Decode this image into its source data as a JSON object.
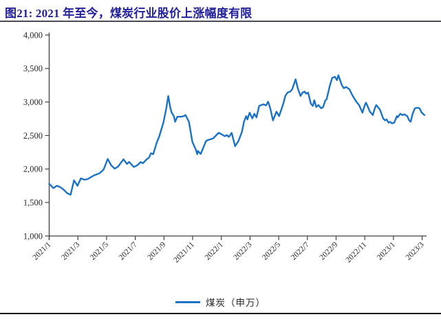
{
  "figure": {
    "title": "图21: 2021 年至今，煤炭行业股价上涨幅度有限",
    "title_color": "#22219a"
  },
  "legend": {
    "label": "煤炭（申万）",
    "line_color": "#1b72c4"
  },
  "chart_data": {
    "type": "line",
    "title": "图21: 2021 年至今，煤炭行业股价上涨幅度有限",
    "xlabel": "",
    "ylabel": "",
    "grid": false,
    "legend_position": "bottom",
    "ylim": [
      1000,
      4000
    ],
    "y_ticks": [
      4000,
      3500,
      3000,
      2500,
      2000,
      1500,
      1000
    ],
    "y_tick_labels": [
      "4,000",
      "3,500",
      "3,000",
      "2,500",
      "2,000",
      "1,500",
      "1,000"
    ],
    "x_ticks": [
      "2021/1",
      "2021/3",
      "2021/5",
      "2021/7",
      "2021/9",
      "2021/11",
      "2022/1",
      "2022/3",
      "2022/5",
      "2022/7",
      "2022/9",
      "2022/11",
      "2023/1",
      "2023/3"
    ],
    "x_tick_month_offsets": [
      0,
      2,
      4,
      6,
      8,
      10,
      12,
      14,
      16,
      18,
      20,
      22,
      24,
      26
    ],
    "x_unit": "months since 2021/1, weekly closes",
    "axis_color": "#3f3f3f",
    "tick_text_color": "#262626",
    "series": [
      {
        "name": "煤炭（申万）",
        "color": "#1b72c4",
        "points": [
          [
            0.0,
            1780
          ],
          [
            0.29,
            1715
          ],
          [
            0.53,
            1750
          ],
          [
            0.77,
            1730
          ],
          [
            1.01,
            1690
          ],
          [
            1.25,
            1640
          ],
          [
            1.49,
            1615
          ],
          [
            1.73,
            1830
          ],
          [
            1.97,
            1750
          ],
          [
            2.21,
            1860
          ],
          [
            2.45,
            1840
          ],
          [
            2.69,
            1850
          ],
          [
            3.12,
            1905
          ],
          [
            3.5,
            1935
          ],
          [
            3.79,
            1990
          ],
          [
            4.08,
            2150
          ],
          [
            4.32,
            2055
          ],
          [
            4.56,
            2005
          ],
          [
            4.8,
            2035
          ],
          [
            5.18,
            2145
          ],
          [
            5.42,
            2075
          ],
          [
            5.57,
            2105
          ],
          [
            5.9,
            2030
          ],
          [
            6.14,
            2055
          ],
          [
            6.38,
            2105
          ],
          [
            6.53,
            2085
          ],
          [
            6.77,
            2140
          ],
          [
            6.96,
            2170
          ],
          [
            7.1,
            2235
          ],
          [
            7.25,
            2220
          ],
          [
            7.49,
            2390
          ],
          [
            7.68,
            2490
          ],
          [
            7.97,
            2700
          ],
          [
            8.16,
            2900
          ],
          [
            8.3,
            3090
          ],
          [
            8.45,
            2905
          ],
          [
            8.54,
            2840
          ],
          [
            8.69,
            2790
          ],
          [
            8.78,
            2705
          ],
          [
            8.93,
            2780
          ],
          [
            9.17,
            2780
          ],
          [
            9.41,
            2790
          ],
          [
            9.5,
            2805
          ],
          [
            9.74,
            2705
          ],
          [
            9.98,
            2405
          ],
          [
            10.22,
            2290
          ],
          [
            10.32,
            2220
          ],
          [
            10.37,
            2270
          ],
          [
            10.56,
            2225
          ],
          [
            10.94,
            2420
          ],
          [
            11.18,
            2440
          ],
          [
            11.42,
            2455
          ],
          [
            11.81,
            2540
          ],
          [
            12.0,
            2520
          ],
          [
            12.24,
            2490
          ],
          [
            12.38,
            2505
          ],
          [
            12.53,
            2480
          ],
          [
            12.72,
            2540
          ],
          [
            12.96,
            2340
          ],
          [
            13.2,
            2420
          ],
          [
            13.44,
            2555
          ],
          [
            13.58,
            2705
          ],
          [
            13.73,
            2790
          ],
          [
            13.82,
            2740
          ],
          [
            13.97,
            2840
          ],
          [
            14.16,
            2755
          ],
          [
            14.3,
            2825
          ],
          [
            14.45,
            2770
          ],
          [
            14.64,
            2940
          ],
          [
            14.78,
            2955
          ],
          [
            14.93,
            2965
          ],
          [
            15.12,
            2950
          ],
          [
            15.26,
            3005
          ],
          [
            15.41,
            2905
          ],
          [
            15.6,
            2725
          ],
          [
            15.84,
            2855
          ],
          [
            16.03,
            2790
          ],
          [
            16.32,
            2975
          ],
          [
            16.46,
            3090
          ],
          [
            16.61,
            3140
          ],
          [
            16.8,
            3155
          ],
          [
            16.94,
            3190
          ],
          [
            17.18,
            3340
          ],
          [
            17.33,
            3205
          ],
          [
            17.52,
            3090
          ],
          [
            17.66,
            3140
          ],
          [
            17.81,
            3155
          ],
          [
            17.9,
            3125
          ],
          [
            18.05,
            3140
          ],
          [
            18.24,
            2975
          ],
          [
            18.38,
            2940
          ],
          [
            18.48,
            3025
          ],
          [
            18.62,
            2925
          ],
          [
            18.77,
            2955
          ],
          [
            18.96,
            2905
          ],
          [
            19.1,
            2925
          ],
          [
            19.25,
            3025
          ],
          [
            19.34,
            3040
          ],
          [
            19.58,
            3255
          ],
          [
            19.73,
            3360
          ],
          [
            19.92,
            3375
          ],
          [
            20.06,
            3325
          ],
          [
            20.16,
            3400
          ],
          [
            20.4,
            3255
          ],
          [
            20.54,
            3205
          ],
          [
            20.69,
            3225
          ],
          [
            20.93,
            3190
          ],
          [
            21.12,
            3105
          ],
          [
            21.26,
            3055
          ],
          [
            21.41,
            3005
          ],
          [
            21.6,
            2955
          ],
          [
            21.84,
            2840
          ],
          [
            21.98,
            2940
          ],
          [
            22.08,
            2990
          ],
          [
            22.22,
            2925
          ],
          [
            22.36,
            2855
          ],
          [
            22.56,
            2805
          ],
          [
            22.7,
            2905
          ],
          [
            22.8,
            2955
          ],
          [
            23.04,
            2890
          ],
          [
            23.08,
            2875
          ],
          [
            23.28,
            2755
          ],
          [
            23.42,
            2725
          ],
          [
            23.52,
            2740
          ],
          [
            23.66,
            2690
          ],
          [
            23.76,
            2705
          ],
          [
            23.9,
            2680
          ],
          [
            24.05,
            2690
          ],
          [
            24.24,
            2790
          ],
          [
            24.29,
            2770
          ],
          [
            24.48,
            2825
          ],
          [
            24.62,
            2805
          ],
          [
            24.77,
            2815
          ],
          [
            24.96,
            2790
          ],
          [
            25.1,
            2725
          ],
          [
            25.2,
            2705
          ],
          [
            25.34,
            2825
          ],
          [
            25.49,
            2905
          ],
          [
            25.68,
            2915
          ],
          [
            25.82,
            2905
          ],
          [
            25.97,
            2840
          ],
          [
            26.16,
            2805
          ]
        ]
      }
    ]
  }
}
